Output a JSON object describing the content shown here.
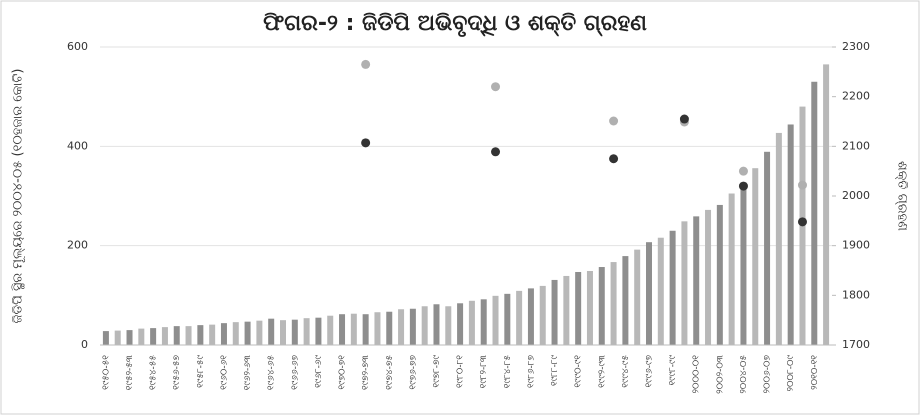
{
  "chart_data": {
    "type": "bar",
    "title": "ଫିଗର-୨ : ଜିଡିପି ଅଭିବୃଦ୍ଧି ଓ ଶକ୍ତି ଗ୍ରହଣ",
    "y_label": "ଜିଡିପି ସ୍ଥିର ମୂଲ୍ୟରେ ୨୦୦୪-୦୫ (୧୦ହଜାର କୋଟି)",
    "y2_label": "ଶକ୍ତି ଗ୍ରହଣ",
    "categories": [
      "୧୯୫୦-୫୧",
      null,
      "୧୯୫୨-୫୩",
      null,
      "୧୯୫୪-୫୫",
      null,
      "୧୯୫୬-୫୭",
      null,
      "୧୯୫୮-୫୯",
      null,
      "୧୯୬୦-୬୧",
      null,
      "୧୯୬୨-୬୩",
      null,
      "୧୯୬୪-୬୫",
      null,
      "୧୯୬୬-୬୭",
      null,
      "୧୯୬୮-୬୯",
      null,
      "୧୯୭୦-୭୧",
      null,
      "୧୯୭୨-୭୩",
      null,
      "୧୯୭୪-୭୫",
      null,
      "୧୯୭୬-୭୭",
      null,
      "୧୯୭୮-୭୯",
      null,
      "୧୯୮୦-୮୧",
      null,
      "୧୯୮୨-୮୩",
      null,
      "୧୯୮୪-୮୫",
      null,
      "୧୯୮୬-୮୭",
      null,
      "୧୯୮୮-୮୯",
      null,
      "୧୯୯୦-୯୧",
      null,
      "୧୯୯୨-୯୩",
      null,
      "୧୯୯୪-୯୫",
      null,
      "୧୯୯୬-୯୭",
      null,
      "୧୯୯୮-୯୯",
      null,
      "୨୦୦୦-୦୧",
      null,
      "୨୦୦୨-୦୩",
      null,
      "୨୦୦୪-୦୫",
      null,
      "୨୦୦୬-୦୭",
      null,
      "୨୦୦୮-୦୯",
      null,
      "୨୦୧୦-୧୧",
      null
    ],
    "values": [
      28,
      29,
      30,
      33,
      34,
      36,
      38,
      38,
      40,
      41,
      44,
      46,
      47,
      49,
      53,
      50,
      51,
      54,
      55,
      59,
      62,
      63,
      62,
      66,
      67,
      72,
      73,
      78,
      82,
      78,
      84,
      89,
      92,
      99,
      103,
      109,
      114,
      119,
      131,
      139,
      147,
      149,
      157,
      167,
      179,
      192,
      207,
      216,
      230,
      249,
      259,
      272,
      282,
      305,
      327,
      356,
      389,
      427,
      444,
      480,
      530,
      565
    ],
    "colors": [
      "#8e8e8e",
      "#b8b8b8"
    ],
    "ylim": [
      0,
      600
    ],
    "yticks": [
      0,
      200,
      400,
      600
    ],
    "y2lim": [
      1700,
      2300
    ],
    "y2ticks": [
      1700,
      1800,
      1900,
      2000,
      2100,
      2200,
      2300
    ],
    "series": [
      {
        "color": "#b0b0b0",
        "axis": "y2",
        "type": "scatter",
        "values": [
          null,
          null,
          null,
          null,
          null,
          null,
          null,
          null,
          null,
          null,
          null,
          null,
          null,
          null,
          null,
          null,
          null,
          null,
          null,
          null,
          null,
          null,
          2265,
          null,
          null,
          null,
          null,
          null,
          null,
          null,
          null,
          null,
          null,
          2220,
          null,
          null,
          null,
          null,
          null,
          null,
          null,
          null,
          null,
          2151,
          null,
          null,
          null,
          null,
          null,
          2149,
          null,
          null,
          null,
          null,
          2050,
          null,
          null,
          null,
          null,
          2022,
          null,
          null
        ]
      },
      {
        "color": "#333333",
        "axis": "y2",
        "type": "scatter",
        "values": [
          null,
          null,
          null,
          null,
          null,
          null,
          null,
          null,
          null,
          null,
          null,
          null,
          null,
          null,
          null,
          null,
          null,
          null,
          null,
          null,
          null,
          null,
          2107,
          null,
          null,
          null,
          null,
          null,
          null,
          null,
          null,
          null,
          null,
          2089,
          null,
          null,
          null,
          null,
          null,
          null,
          null,
          null,
          null,
          2075,
          null,
          null,
          null,
          null,
          null,
          2155,
          null,
          null,
          null,
          null,
          2020,
          null,
          null,
          null,
          null,
          1948,
          null,
          null
        ]
      }
    ]
  }
}
